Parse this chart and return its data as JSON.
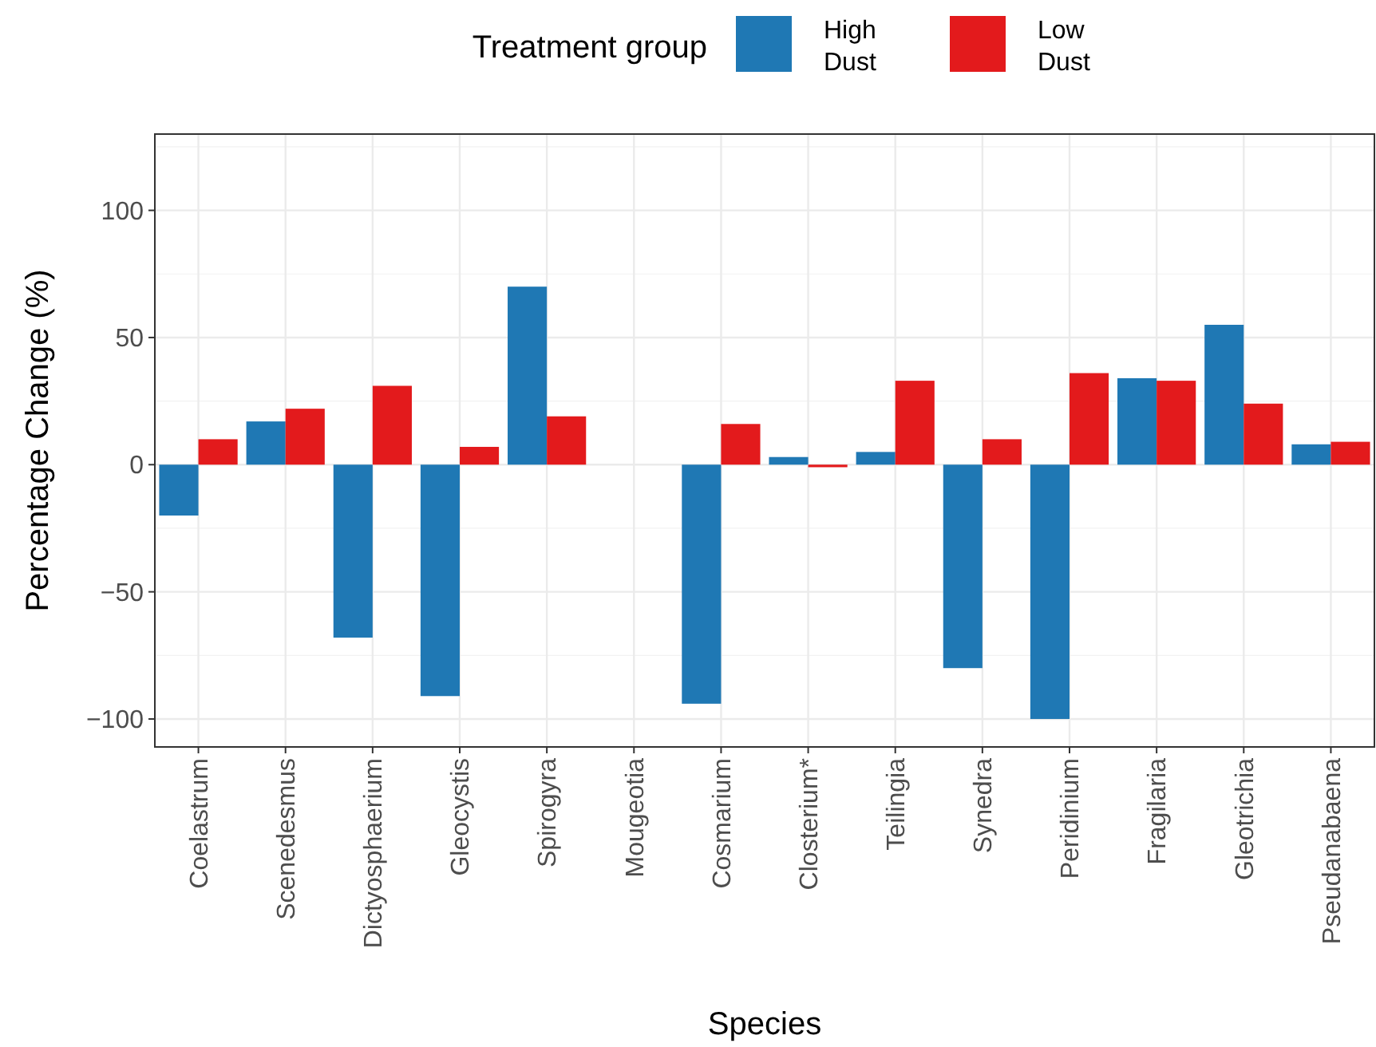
{
  "chart_data": {
    "type": "bar",
    "xlabel": "Species",
    "ylabel": "Percentage Change (%)",
    "legend_title": "Treatment group",
    "legend": "top",
    "grid": true,
    "categories": [
      "Coelastrum",
      "Scenedesmus",
      "Dictyosphaerium",
      "Gleocystis",
      "Spirogyra",
      "Mougeotia",
      "Cosmarium",
      "Closterium*",
      "Teilingia",
      "Synedra",
      "Peridinium",
      "Fragilaria",
      "Gleotrichia",
      "Pseudanabaena"
    ],
    "ylim": [
      -111,
      130
    ],
    "yticks": [
      -100,
      -50,
      0,
      50,
      100
    ],
    "series": [
      {
        "name": "High Dust",
        "color": "#1f78b4",
        "values": [
          -20,
          17,
          -68,
          -91,
          70,
          0,
          -94,
          3,
          5,
          -80,
          -100,
          34,
          55,
          8
        ]
      },
      {
        "name": "Low Dust",
        "color": "#e31a1c",
        "values": [
          10,
          22,
          31,
          7,
          19,
          0,
          16,
          -1,
          33,
          10,
          36,
          33,
          24,
          9
        ]
      }
    ]
  }
}
